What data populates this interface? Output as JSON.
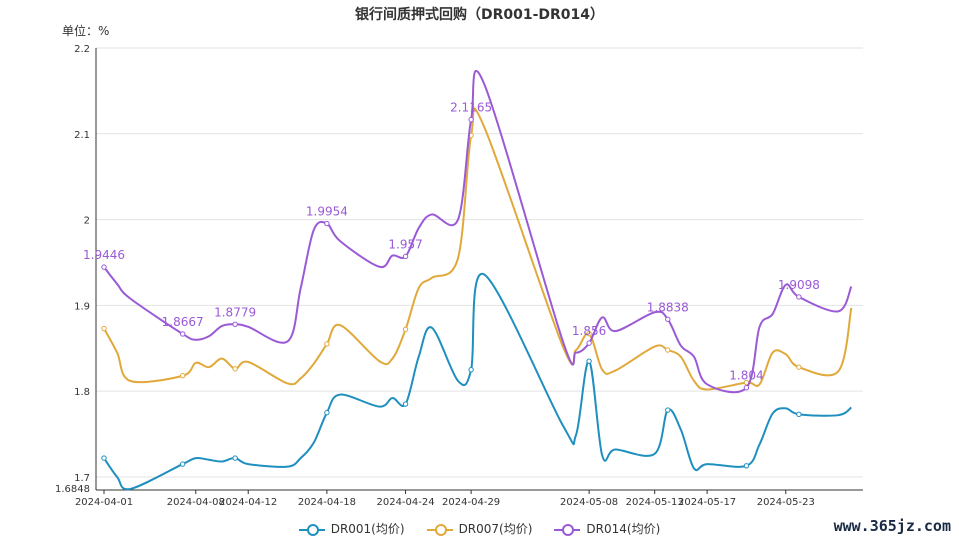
{
  "chart_data": {
    "type": "line",
    "title": "银行间质押式回购（DR001-DR014）",
    "unit_label": "单位：%",
    "ylim": [
      1.6848,
      2.2
    ],
    "yticks": [
      1.7,
      1.8,
      1.9,
      2,
      2.1,
      2.2
    ],
    "ymin_label": "1.6848",
    "x_tick_labels": [
      "2024-04-01",
      "2024-04-08",
      "2024-04-12",
      "2024-04-18",
      "2024-04-24",
      "2024-04-29",
      "2024-05-08",
      "2024-05-13",
      "2024-05-17",
      "2024-05-23"
    ],
    "x": [
      "2024-04-01",
      "2024-04-02",
      "2024-04-03",
      "2024-04-07",
      "2024-04-08",
      "2024-04-09",
      "2024-04-10",
      "2024-04-11",
      "2024-04-12",
      "2024-04-15",
      "2024-04-16",
      "2024-04-17",
      "2024-04-18",
      "2024-04-19",
      "2024-04-22",
      "2024-04-23",
      "2024-04-24",
      "2024-04-25",
      "2024-04-26",
      "2024-04-28",
      "2024-04-29",
      "2024-04-30",
      "2024-05-06",
      "2024-05-07",
      "2024-05-08",
      "2024-05-09",
      "2024-05-10",
      "2024-05-13",
      "2024-05-14",
      "2024-05-15",
      "2024-05-16",
      "2024-05-17",
      "2024-05-20",
      "2024-05-21",
      "2024-05-22",
      "2024-05-23",
      "2024-05-24",
      "2024-05-27",
      "2024-05-28"
    ],
    "series": [
      {
        "name": "DR001(均价)",
        "color": "#1f8fbf",
        "values": [
          1.722,
          1.7,
          1.686,
          1.715,
          1.722,
          1.72,
          1.718,
          1.722,
          1.715,
          1.712,
          1.722,
          1.74,
          1.775,
          1.796,
          1.782,
          1.792,
          1.785,
          1.84,
          1.874,
          1.812,
          1.825,
          1.936,
          1.76,
          1.749,
          1.835,
          1.725,
          1.732,
          1.727,
          1.778,
          1.755,
          1.71,
          1.715,
          1.713,
          1.738,
          1.774,
          1.78,
          1.773,
          1.772,
          1.781
        ]
      },
      {
        "name": "DR007(均价)",
        "color": "#e0a93a",
        "values": [
          1.873,
          1.845,
          1.812,
          1.818,
          1.833,
          1.828,
          1.838,
          1.826,
          1.834,
          1.809,
          1.815,
          1.832,
          1.855,
          1.877,
          1.835,
          1.838,
          1.872,
          1.92,
          1.932,
          1.955,
          2.098,
          2.108,
          1.852,
          1.848,
          1.867,
          1.825,
          1.824,
          1.852,
          1.848,
          1.84,
          1.812,
          1.802,
          1.81,
          1.808,
          1.845,
          1.843,
          1.828,
          1.823,
          1.897
        ]
      },
      {
        "name": "DR014(均价)",
        "color": "#9a5ad6",
        "values": [
          1.9446,
          1.925,
          1.908,
          1.8667,
          1.86,
          1.864,
          1.876,
          1.8779,
          1.875,
          1.858,
          1.92,
          1.988,
          1.9954,
          1.975,
          1.945,
          1.958,
          1.957,
          1.99,
          2.006,
          2.0,
          2.1165,
          2.158,
          1.858,
          1.845,
          1.856,
          1.886,
          1.87,
          1.892,
          1.8838,
          1.853,
          1.84,
          1.808,
          1.804,
          1.875,
          1.89,
          1.924,
          1.9098,
          1.893,
          1.922
        ]
      }
    ],
    "data_labels": [
      {
        "series": 2,
        "index": 0,
        "text": "1.9446"
      },
      {
        "series": 2,
        "index": 3,
        "text": "1.8667"
      },
      {
        "series": 2,
        "index": 7,
        "text": "1.8779"
      },
      {
        "series": 2,
        "index": 12,
        "text": "1.9954"
      },
      {
        "series": 2,
        "index": 16,
        "text": "1.957"
      },
      {
        "series": 2,
        "index": 20,
        "text": "2.1165"
      },
      {
        "series": 2,
        "index": 24,
        "text": "1.856"
      },
      {
        "series": 2,
        "index": 28,
        "text": "1.8838"
      },
      {
        "series": 2,
        "index": 32,
        "text": "1.804"
      },
      {
        "series": 2,
        "index": 36,
        "text": "1.9098"
      }
    ],
    "marker_indices": [
      0,
      3,
      7,
      12,
      16,
      20,
      24,
      28,
      32,
      36
    ],
    "grid": true,
    "legend": "bottom-center"
  },
  "watermark": "www.365jz.com"
}
